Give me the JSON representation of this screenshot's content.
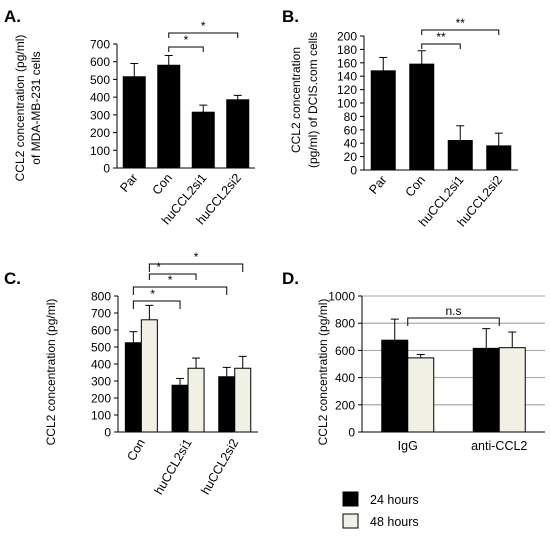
{
  "chart_data": [
    {
      "panel": "A.",
      "type": "bar",
      "ylabel": [
        "CCL2 concentration (pg/ml)",
        "of MDA-MB-231 cells"
      ],
      "ylim": [
        0,
        700
      ],
      "yticks": [
        0,
        100,
        200,
        300,
        400,
        500,
        600,
        700
      ],
      "categories": [
        "Par",
        "Con",
        "huCCL2si1",
        "huCCL2si2"
      ],
      "series": [
        {
          "values": [
            515,
            580,
            315,
            385
          ],
          "errors": [
            75,
            55,
            40,
            25
          ],
          "color": "#000000"
        }
      ],
      "annotations": [
        {
          "from": "Con",
          "to": "huCCL2si1",
          "label": "*"
        },
        {
          "from": "Con",
          "to": "huCCL2si2",
          "label": "*"
        }
      ]
    },
    {
      "panel": "B.",
      "type": "bar",
      "ylabel": [
        "CCL2 concentration",
        "(pg/ml) of DCIS.com cells"
      ],
      "ylim": [
        0,
        200
      ],
      "yticks": [
        0,
        20,
        40,
        60,
        80,
        100,
        120,
        140,
        160,
        180,
        200
      ],
      "categories": [
        "Par",
        "Con",
        "huCCL2si1",
        "huCCL2si2"
      ],
      "series": [
        {
          "values": [
            148,
            158,
            44,
            36
          ],
          "errors": [
            20,
            20,
            22,
            19
          ],
          "color": "#000000"
        }
      ],
      "annotations": [
        {
          "from": "Con",
          "to": "huCCL2si1",
          "label": "**"
        },
        {
          "from": "Con",
          "to": "huCCL2si2",
          "label": "**"
        }
      ]
    },
    {
      "panel": "C.",
      "type": "bar",
      "ylabel": [
        "CCL2 concentration  (pg/ml)"
      ],
      "ylim": [
        0,
        800
      ],
      "yticks": [
        0,
        100,
        200,
        300,
        400,
        500,
        600,
        700,
        800
      ],
      "categories": [
        "Con",
        "huCCL2si1",
        "huCCL2si2"
      ],
      "series": [
        {
          "values": [
            525,
            275,
            325
          ],
          "errors": [
            65,
            40,
            55
          ],
          "color": "#000000"
        },
        {
          "values": [
            660,
            375,
            375
          ],
          "errors": [
            85,
            60,
            70
          ],
          "color": "#f0f0e4"
        }
      ],
      "annotations": [
        {
          "from": "Con",
          "to": "huCCL2si1",
          "label": "*"
        },
        {
          "from": "Con",
          "to": "huCCL2si1",
          "label": "*"
        },
        {
          "from": "Con",
          "to": "huCCL2si2",
          "label": "*"
        },
        {
          "from": "Con",
          "to": "huCCL2si2",
          "label": "*"
        }
      ]
    },
    {
      "panel": "D.",
      "type": "bar",
      "ylabel": [
        "CCL2 concentration  (pg/ml)"
      ],
      "ylim": [
        0,
        1000
      ],
      "yticks": [
        0,
        200,
        400,
        600,
        800,
        1000
      ],
      "grid": true,
      "categories": [
        "IgG",
        "anti-CCL2"
      ],
      "series": [
        {
          "values": [
            675,
            615
          ],
          "errors": [
            155,
            145
          ],
          "color": "#000000"
        },
        {
          "values": [
            545,
            620
          ],
          "errors": [
            25,
            115
          ],
          "color": "#f0f0e4"
        }
      ],
      "annotations": [
        {
          "from": "IgG",
          "to": "anti-CCL2",
          "label": "n.s"
        }
      ]
    }
  ],
  "legend": [
    {
      "label": "24 hours",
      "color": "#000000"
    },
    {
      "label": "48 hours",
      "color": "#f0f0e4"
    }
  ]
}
